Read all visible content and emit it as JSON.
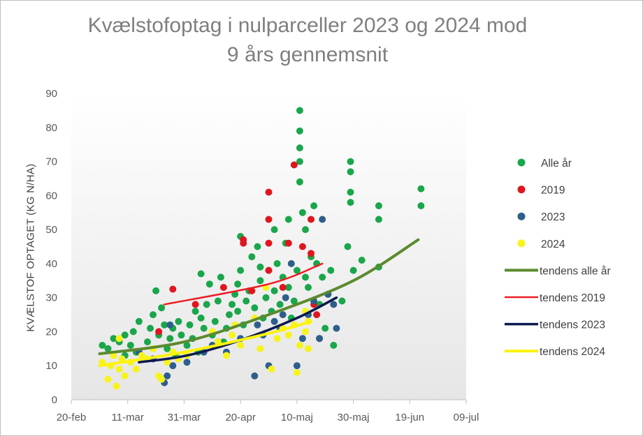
{
  "chart_data": {
    "type": "scatter",
    "title": "Kvælstofoptag  i nulparceller  2023 og 2024 mod\n9 års gennemsnit",
    "ylabel": "KVÆLSTOF OPTAGET (KG N/HA)",
    "xlabel": "",
    "x_ticks": [
      "20-feb",
      "11-mar",
      "31-mar",
      "20-apr",
      "10-maj",
      "30-maj",
      "19-jun",
      "09-jul"
    ],
    "y_ticks": [
      "0",
      "10",
      "20",
      "30",
      "40",
      "50",
      "60",
      "70",
      "80",
      "90"
    ],
    "xlim": [
      "2024-02-20",
      "2024-07-09"
    ],
    "ylim": [
      0,
      90
    ],
    "grid": false,
    "legend_position": "right",
    "series": [
      {
        "name": "Alle år",
        "color": "#1aa64b",
        "points": [
          [
            "2024-03-02",
            16
          ],
          [
            "2024-03-04",
            15
          ],
          [
            "2024-03-06",
            18
          ],
          [
            "2024-03-08",
            17
          ],
          [
            "2024-03-10",
            19
          ],
          [
            "2024-03-10",
            13
          ],
          [
            "2024-03-12",
            16
          ],
          [
            "2024-03-13",
            20
          ],
          [
            "2024-03-14",
            14
          ],
          [
            "2024-03-15",
            23
          ],
          [
            "2024-03-18",
            17
          ],
          [
            "2024-03-19",
            21
          ],
          [
            "2024-03-20",
            25
          ],
          [
            "2024-03-21",
            32
          ],
          [
            "2024-03-22",
            19
          ],
          [
            "2024-03-23",
            27
          ],
          [
            "2024-03-24",
            22
          ],
          [
            "2024-03-25",
            15
          ],
          [
            "2024-03-26",
            18
          ],
          [
            "2024-03-27",
            21
          ],
          [
            "2024-03-28",
            13
          ],
          [
            "2024-03-29",
            23
          ],
          [
            "2024-03-30",
            19
          ],
          [
            "2024-04-01",
            16
          ],
          [
            "2024-04-02",
            22
          ],
          [
            "2024-04-03",
            18
          ],
          [
            "2024-04-04",
            26
          ],
          [
            "2024-04-05",
            14
          ],
          [
            "2024-04-06",
            24
          ],
          [
            "2024-04-07",
            21
          ],
          [
            "2024-04-08",
            28
          ],
          [
            "2024-04-09",
            34
          ],
          [
            "2024-04-10",
            19
          ],
          [
            "2024-04-11",
            23
          ],
          [
            "2024-04-12",
            29
          ],
          [
            "2024-04-13",
            36
          ],
          [
            "2024-04-14",
            17
          ],
          [
            "2024-04-15",
            21
          ],
          [
            "2024-04-16",
            25
          ],
          [
            "2024-04-17",
            28
          ],
          [
            "2024-04-18",
            31
          ],
          [
            "2024-04-19",
            26
          ],
          [
            "2024-04-20",
            38
          ],
          [
            "2024-04-21",
            22
          ],
          [
            "2024-04-22",
            29
          ],
          [
            "2024-04-23",
            32
          ],
          [
            "2024-04-24",
            42
          ],
          [
            "2024-04-25",
            27
          ],
          [
            "2024-04-26",
            45
          ],
          [
            "2024-04-27",
            35
          ],
          [
            "2024-04-28",
            24
          ],
          [
            "2024-04-29",
            30
          ],
          [
            "2024-04-30",
            38
          ],
          [
            "2024-05-01",
            26
          ],
          [
            "2024-05-02",
            32
          ],
          [
            "2024-05-03",
            40
          ],
          [
            "2024-05-04",
            28
          ],
          [
            "2024-05-05",
            36
          ],
          [
            "2024-05-06",
            46
          ],
          [
            "2024-05-07",
            33
          ],
          [
            "2024-05-08",
            24
          ],
          [
            "2024-05-09",
            29
          ],
          [
            "2024-05-10",
            38
          ],
          [
            "2024-05-11",
            85
          ],
          [
            "2024-05-11",
            79
          ],
          [
            "2024-05-11",
            74
          ],
          [
            "2024-05-11",
            70
          ],
          [
            "2024-05-11",
            64
          ],
          [
            "2024-05-12",
            55
          ],
          [
            "2024-05-13",
            50
          ],
          [
            "2024-05-14",
            33
          ],
          [
            "2024-05-15",
            42
          ],
          [
            "2024-05-16",
            57
          ],
          [
            "2024-05-17",
            40
          ],
          [
            "2024-05-18",
            28
          ],
          [
            "2024-05-19",
            36
          ],
          [
            "2024-05-20",
            21
          ],
          [
            "2024-05-21",
            31
          ],
          [
            "2024-05-22",
            38
          ],
          [
            "2024-05-23",
            16
          ],
          [
            "2024-05-26",
            29
          ],
          [
            "2024-05-28",
            45
          ],
          [
            "2024-05-29",
            70
          ],
          [
            "2024-05-29",
            67
          ],
          [
            "2024-05-29",
            61
          ],
          [
            "2024-05-29",
            58
          ],
          [
            "2024-05-30",
            38
          ],
          [
            "2024-06-02",
            41
          ],
          [
            "2024-06-08",
            57
          ],
          [
            "2024-06-08",
            53
          ],
          [
            "2024-06-08",
            39
          ],
          [
            "2024-06-23",
            62
          ],
          [
            "2024-06-23",
            57
          ],
          [
            "2024-04-20",
            48
          ],
          [
            "2024-05-02",
            50
          ],
          [
            "2024-05-07",
            53
          ],
          [
            "2024-04-06",
            37
          ],
          [
            "2024-04-27",
            39
          ],
          [
            "2024-05-13",
            36
          ],
          [
            "2024-04-19",
            34
          ]
        ]
      },
      {
        "name": "2019",
        "color": "#e0161e",
        "points": [
          [
            "2024-03-27",
            32.5
          ],
          [
            "2024-03-22",
            20
          ],
          [
            "2024-04-04",
            28
          ],
          [
            "2024-04-21",
            46
          ],
          [
            "2024-04-21",
            47
          ],
          [
            "2024-04-30",
            38
          ],
          [
            "2024-04-30",
            61
          ],
          [
            "2024-04-30",
            53
          ],
          [
            "2024-04-30",
            46
          ],
          [
            "2024-05-05",
            33
          ],
          [
            "2024-05-07",
            46
          ],
          [
            "2024-05-09",
            69
          ],
          [
            "2024-05-12",
            45
          ],
          [
            "2024-05-15",
            53
          ],
          [
            "2024-05-15",
            43
          ],
          [
            "2024-05-16",
            28
          ],
          [
            "2024-05-18",
            18
          ],
          [
            "2024-04-24",
            32
          ],
          [
            "2024-04-14",
            33
          ],
          [
            "2024-05-17",
            25
          ]
        ]
      },
      {
        "name": "2023",
        "color": "#2e5f8c",
        "points": [
          [
            "2024-03-15",
            14
          ],
          [
            "2024-03-20",
            12
          ],
          [
            "2024-03-24",
            5
          ],
          [
            "2024-03-25",
            7
          ],
          [
            "2024-03-27",
            10
          ],
          [
            "2024-04-01",
            11
          ],
          [
            "2024-04-07",
            14
          ],
          [
            "2024-04-10",
            16
          ],
          [
            "2024-04-15",
            14
          ],
          [
            "2024-04-20",
            18
          ],
          [
            "2024-04-25",
            7
          ],
          [
            "2024-04-28",
            19
          ],
          [
            "2024-04-30",
            10
          ],
          [
            "2024-05-02",
            23
          ],
          [
            "2024-05-04",
            21
          ],
          [
            "2024-05-06",
            30
          ],
          [
            "2024-05-08",
            40
          ],
          [
            "2024-05-10",
            10
          ],
          [
            "2024-05-12",
            18
          ],
          [
            "2024-05-14",
            25
          ],
          [
            "2024-05-16",
            29
          ],
          [
            "2024-05-18",
            18
          ],
          [
            "2024-05-19",
            53
          ],
          [
            "2024-05-21",
            31
          ],
          [
            "2024-05-23",
            28
          ],
          [
            "2024-05-24",
            21
          ],
          [
            "2024-04-26",
            22
          ],
          [
            "2024-05-05",
            25
          ],
          [
            "2024-03-26",
            22
          ],
          [
            "2024-04-12",
            17
          ]
        ]
      },
      {
        "name": "2024",
        "color": "#f7f41b",
        "points": [
          [
            "2024-03-02",
            11
          ],
          [
            "2024-03-04",
            6
          ],
          [
            "2024-03-05",
            10
          ],
          [
            "2024-03-06",
            13
          ],
          [
            "2024-03-07",
            4
          ],
          [
            "2024-03-08",
            9
          ],
          [
            "2024-03-08",
            18
          ],
          [
            "2024-03-09",
            12
          ],
          [
            "2024-03-10",
            7
          ],
          [
            "2024-03-12",
            11
          ],
          [
            "2024-03-14",
            9
          ],
          [
            "2024-03-16",
            13
          ],
          [
            "2024-03-18",
            12
          ],
          [
            "2024-03-20",
            15
          ],
          [
            "2024-03-22",
            7
          ],
          [
            "2024-03-23",
            6
          ],
          [
            "2024-03-25",
            11
          ],
          [
            "2024-03-27",
            14
          ],
          [
            "2024-03-29",
            12
          ],
          [
            "2024-04-01",
            13
          ],
          [
            "2024-04-10",
            20
          ],
          [
            "2024-04-12",
            17
          ],
          [
            "2024-04-15",
            13
          ],
          [
            "2024-04-17",
            19
          ],
          [
            "2024-04-18",
            22
          ],
          [
            "2024-04-20",
            16
          ],
          [
            "2024-04-25",
            24
          ],
          [
            "2024-04-27",
            15
          ],
          [
            "2024-04-29",
            33
          ],
          [
            "2024-05-01",
            9
          ],
          [
            "2024-05-03",
            18
          ],
          [
            "2024-05-05",
            21
          ],
          [
            "2024-05-07",
            19
          ],
          [
            "2024-05-09",
            22
          ],
          [
            "2024-05-10",
            8
          ],
          [
            "2024-05-11",
            16
          ],
          [
            "2024-05-13",
            26
          ],
          [
            "2024-05-13",
            20
          ],
          [
            "2024-05-14",
            15
          ],
          [
            "2024-05-14",
            23
          ]
        ]
      }
    ],
    "trendlines": [
      {
        "name": "tendens alle år",
        "color": "#5b8a2f",
        "width": 4,
        "points": [
          [
            "2024-03-01",
            13.5
          ],
          [
            "2024-03-31",
            17
          ],
          [
            "2024-04-30",
            25
          ],
          [
            "2024-05-30",
            35
          ],
          [
            "2024-06-22",
            47
          ]
        ]
      },
      {
        "name": "tendens 2019",
        "color": "#ee1d23",
        "width": 2.5,
        "points": [
          [
            "2024-03-24",
            28
          ],
          [
            "2024-04-30",
            34
          ],
          [
            "2024-05-19",
            40
          ]
        ]
      },
      {
        "name": "tendens 2023",
        "color": "#0d1a4f",
        "width": 3.5,
        "points": [
          [
            "2024-03-15",
            11
          ],
          [
            "2024-04-01",
            13
          ],
          [
            "2024-04-20",
            17.5
          ],
          [
            "2024-05-10",
            24
          ],
          [
            "2024-05-24",
            30
          ]
        ]
      },
      {
        "name": "tendens 2024",
        "color": "#fbf30c",
        "width": 4,
        "points": [
          [
            "2024-03-01",
            10
          ],
          [
            "2024-03-31",
            14
          ],
          [
            "2024-04-30",
            19.5
          ],
          [
            "2024-05-15",
            23
          ]
        ]
      }
    ]
  }
}
